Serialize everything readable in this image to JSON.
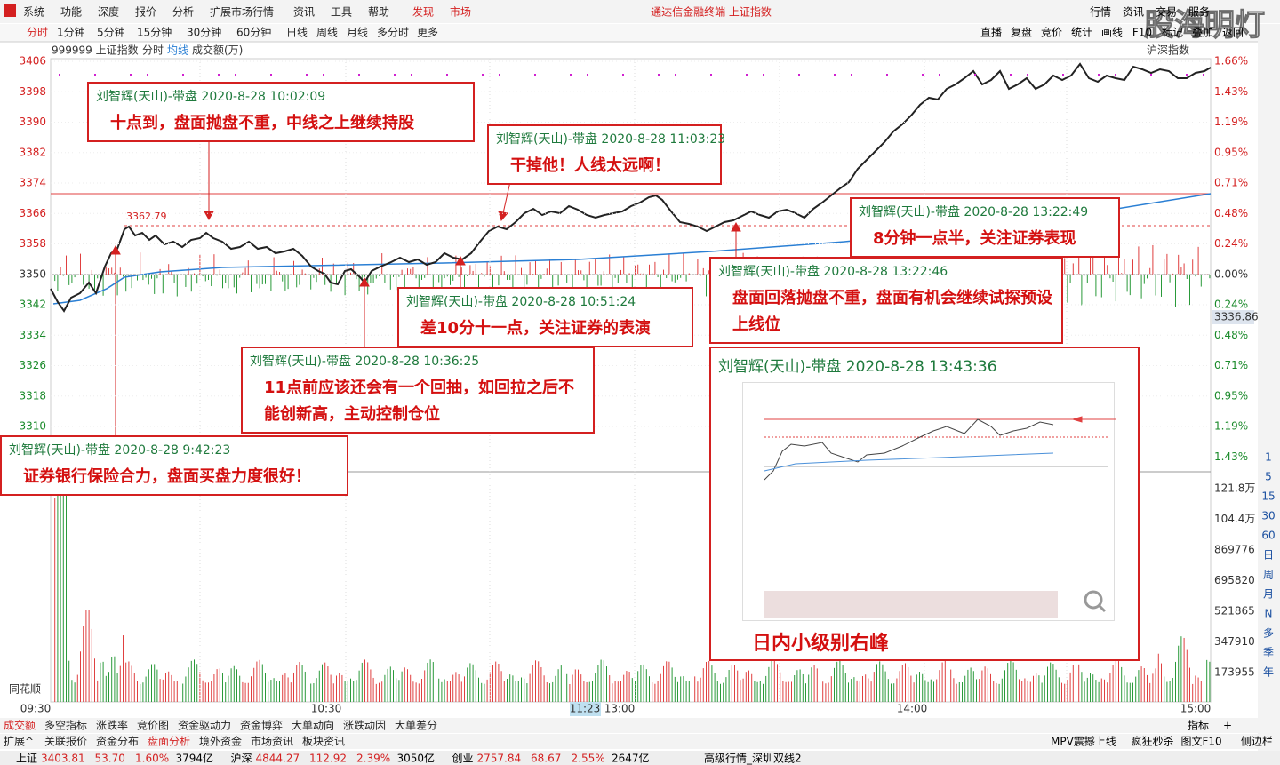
{
  "menu": [
    "系统",
    "功能",
    "深度",
    "报价",
    "分析",
    "扩展市场行情",
    "资讯",
    "工具",
    "帮助",
    "发现",
    "市场"
  ],
  "window_title": "通达信金融终端 上证指数",
  "top_buttons": [
    "行情",
    "资讯",
    "交易",
    "服务"
  ],
  "watermark": "股海明灯",
  "period_tabs": [
    "分时",
    "1分钟",
    "5分钟",
    "15分钟",
    "30分钟",
    "60分钟",
    "日线",
    "周线",
    "月线",
    "多分时",
    "更多"
  ],
  "tools": [
    "直播",
    "复盘",
    "竞价",
    "统计",
    "画线",
    "F10",
    "标记",
    "叠加",
    "返回"
  ],
  "chart_header": {
    "code": "999999 上证指数",
    "mode": "分时",
    "avg": "均线",
    "volume": "成交额(万)",
    "index": "沪深指数"
  },
  "price_ticks": [
    "3406",
    "3398",
    "3390",
    "3382",
    "3374",
    "3366",
    "3358",
    "3350",
    "3342",
    "3334",
    "3326",
    "3318",
    "3310"
  ],
  "pct_ticks": [
    "1.66%",
    "1.43%",
    "1.19%",
    "0.95%",
    "0.71%",
    "0.48%",
    "0.24%",
    "0.00%",
    "0.24%",
    "0.48%",
    "0.71%",
    "0.95%",
    "1.19%",
    "1.43%"
  ],
  "volume_ticks": [
    "121.8万",
    "104.4万",
    "869776",
    "695820",
    "521865",
    "347910",
    "173955"
  ],
  "last_price": "3336.86",
  "high_label": "3362.79",
  "time_labels": [
    "09:30",
    "10:30",
    "11:23",
    "13:00",
    "14:00",
    "15:00"
  ],
  "brand": "同花顺",
  "annotations": [
    {
      "header": "刘智辉(天山)-带盘 2020-8-28 10:02:09",
      "text": "十点到，盘面抛盘不重，中线之上继续持股"
    },
    {
      "header": "刘智辉(天山)-带盘 2020-8-28 11:03:23",
      "text": "干掉他！人线太远啊！"
    },
    {
      "header": "刘智辉(天山)-带盘 2020-8-28 13:22:49",
      "text": "8分钟一点半，关注证券表现"
    },
    {
      "header": "刘智辉(天山)-带盘 2020-8-28 13:22:46",
      "text": "盘面回落抛盘不重，盘面有机会继续试探预设上线位"
    },
    {
      "header": "刘智辉(天山)-带盘 2020-8-28 10:51:24",
      "text": "差10分十一点，关注证券的表演"
    },
    {
      "header": "刘智辉(天山)-带盘 2020-8-28 10:36:25",
      "text": "11点前应该还会有一个回抽，如回拉之后不能创新高，主动控制仓位"
    },
    {
      "header": "刘智辉(天山)-带盘 2020-8-28 9:42:23",
      "text": "证券银行保险合力，盘面买盘力度很好！"
    },
    {
      "header": "刘智辉(天山)-带盘 2020-8-28 13:43:36",
      "text": "日内小级别右峰"
    }
  ],
  "indicator_tabs": [
    "成交额",
    "多空指标",
    "涨跌率",
    "竞价图",
    "资金驱动力",
    "资金博弈",
    "大单动向",
    "涨跌动因",
    "大单差分"
  ],
  "indicator_right": [
    "指标",
    "+"
  ],
  "info_tabs": [
    "扩展^",
    "关联报价",
    "资金分布",
    "盘面分析",
    "境外资金",
    "市场资讯",
    "板块资讯"
  ],
  "info_right": [
    "MPV震撼上线",
    "疯狂秒杀",
    "图文F10",
    "侧边栏"
  ],
  "status": [
    {
      "name": "上证",
      "price": "3403.81",
      "change": "53.70",
      "pct": "1.60%",
      "amount": "3794亿"
    },
    {
      "name": "沪深",
      "price": "4844.27",
      "change": "112.92",
      "pct": "2.39%",
      "amount": "3050亿"
    },
    {
      "name": "创业",
      "price": "2757.84",
      "change": "68.67",
      "pct": "2.55%",
      "amount": "2647亿"
    }
  ],
  "status_right": "高级行情_深圳双线2",
  "sidebar": [
    "1",
    "5",
    "15",
    "30",
    "60",
    "日",
    "周",
    "月",
    "N",
    "多",
    "季",
    "年"
  ]
}
